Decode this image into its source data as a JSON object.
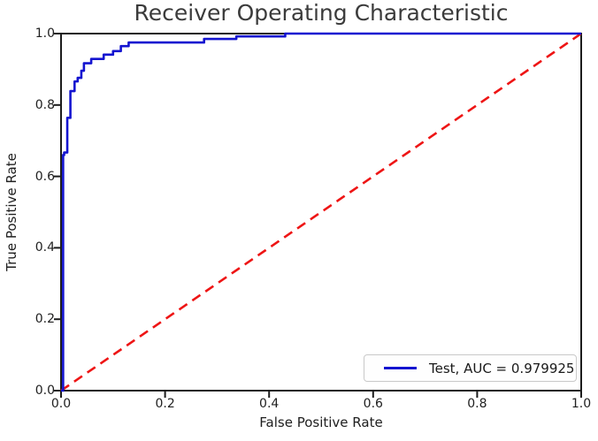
{
  "figure": {
    "background": "#ffffff"
  },
  "title": {
    "text": "Receiver Operating Characteristic",
    "color": "#3b3b3b"
  },
  "axes": {
    "xlabel": "False Positive Rate",
    "ylabel": "True Positive Rate",
    "x_tick_labels": [
      "0.0",
      "0.2",
      "0.4",
      "0.6",
      "0.8",
      "1.0"
    ],
    "y_tick_labels": [
      "0.0",
      "0.2",
      "0.4",
      "0.6",
      "0.8",
      "1.0"
    ],
    "spine_color": "#1c1c1c"
  },
  "legend": {
    "label": "Test, AUC = 0.979925",
    "line_color": "#1414d0",
    "position": "lower-right"
  },
  "chart_data": {
    "type": "line",
    "title": "Receiver Operating Characteristic",
    "xlabel": "False Positive Rate",
    "ylabel": "True Positive Rate",
    "xlim": [
      0.0,
      1.0
    ],
    "ylim": [
      0.0,
      1.0
    ],
    "x_ticks": [
      0.0,
      0.2,
      0.4,
      0.6,
      0.8,
      1.0
    ],
    "y_ticks": [
      0.0,
      0.2,
      0.4,
      0.6,
      0.8,
      1.0
    ],
    "grid": false,
    "legend_position": "lower right",
    "series": [
      {
        "name": "Test, AUC = 0.979925",
        "role": "roc-curve",
        "auc": 0.979925,
        "color": "#1414d0",
        "line_style": "solid",
        "points": [
          [
            0.0,
            0.0
          ],
          [
            0.004,
            0.0
          ],
          [
            0.004,
            0.66
          ],
          [
            0.006,
            0.66
          ],
          [
            0.006,
            0.667
          ],
          [
            0.012,
            0.667
          ],
          [
            0.012,
            0.764
          ],
          [
            0.018,
            0.764
          ],
          [
            0.018,
            0.839
          ],
          [
            0.026,
            0.839
          ],
          [
            0.026,
            0.866
          ],
          [
            0.032,
            0.866
          ],
          [
            0.032,
            0.876
          ],
          [
            0.039,
            0.876
          ],
          [
            0.039,
            0.896
          ],
          [
            0.044,
            0.896
          ],
          [
            0.044,
            0.917
          ],
          [
            0.058,
            0.917
          ],
          [
            0.058,
            0.929
          ],
          [
            0.082,
            0.929
          ],
          [
            0.082,
            0.941
          ],
          [
            0.1,
            0.941
          ],
          [
            0.1,
            0.951
          ],
          [
            0.115,
            0.951
          ],
          [
            0.115,
            0.965
          ],
          [
            0.13,
            0.965
          ],
          [
            0.13,
            0.975
          ],
          [
            0.275,
            0.975
          ],
          [
            0.275,
            0.985
          ],
          [
            0.337,
            0.985
          ],
          [
            0.337,
            0.992
          ],
          [
            0.431,
            0.992
          ],
          [
            0.431,
            1.0
          ],
          [
            1.0,
            1.0
          ]
        ]
      },
      {
        "name": "chance-diagonal",
        "role": "reference-line",
        "color": "#ee1515",
        "line_style": "dashed",
        "points": [
          [
            0.0,
            0.0
          ],
          [
            1.0,
            1.0
          ]
        ]
      }
    ]
  }
}
